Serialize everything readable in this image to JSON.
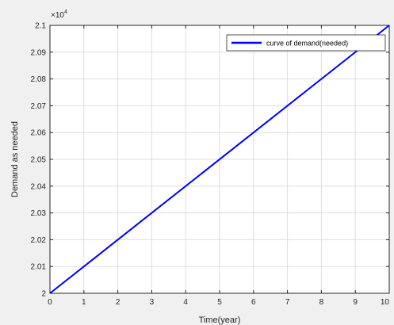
{
  "chart_data": {
    "type": "line",
    "title": "",
    "xlabel": "Time(year)",
    "ylabel": "Demand as needed",
    "xlim": [
      0,
      10
    ],
    "ylim": [
      20000,
      21000
    ],
    "x_ticks": [
      0,
      1,
      2,
      3,
      4,
      5,
      6,
      7,
      8,
      9,
      10
    ],
    "x_tick_labels": [
      "0",
      "1",
      "2",
      "3",
      "4",
      "5",
      "6",
      "7",
      "8",
      "9",
      "10"
    ],
    "y_ticks": [
      20000,
      20100,
      20200,
      20300,
      20400,
      20500,
      20600,
      20700,
      20800,
      20900,
      21000
    ],
    "y_tick_labels": [
      "2",
      "2.01",
      "2.02",
      "2.03",
      "2.04",
      "2.05",
      "2.06",
      "2.07",
      "2.08",
      "2.09",
      "2.1"
    ],
    "y_exponent_base": "×10",
    "y_exponent_power": "4",
    "grid": true,
    "legend_position": "top-right",
    "series": [
      {
        "name": "curve of demand(needed)",
        "color": "#0000ff",
        "x": [
          0,
          10
        ],
        "y": [
          20000,
          21000
        ]
      }
    ]
  }
}
